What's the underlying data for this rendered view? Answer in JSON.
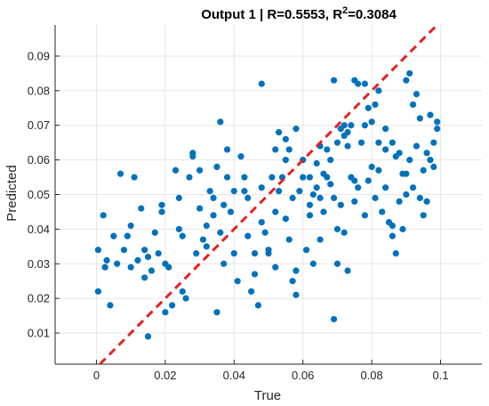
{
  "chart_data": {
    "type": "scatter",
    "title": {
      "prefix": "Output 1 | R=0.5553, R",
      "sup": "2",
      "suffix": "=0.3084"
    },
    "xlabel": "True",
    "ylabel": "Predicted",
    "xlim": [
      -0.012,
      0.112
    ],
    "ylim": [
      0.001,
      0.099
    ],
    "x_ticks": [
      0,
      0.02,
      0.04,
      0.06,
      0.08,
      0.1
    ],
    "x_tick_labels": [
      "0",
      "0.02",
      "0.04",
      "0.06",
      "0.08",
      "0.1"
    ],
    "y_ticks": [
      0.01,
      0.02,
      0.03,
      0.04,
      0.05,
      0.06,
      0.07,
      0.08,
      0.09
    ],
    "y_tick_labels": [
      "0.01",
      "0.02",
      "0.03",
      "0.04",
      "0.05",
      "0.06",
      "0.07",
      "0.08",
      "0.09"
    ],
    "grid": true,
    "marker_color": "#0072BD",
    "reference_line": {
      "style": "dashed",
      "color": "#E32222",
      "from": [
        0,
        0
      ],
      "to": [
        0.1,
        0.1
      ]
    },
    "points": [
      [
        0.0005,
        0.034
      ],
      [
        0.0005,
        0.022
      ],
      [
        0.002,
        0.044
      ],
      [
        0.0025,
        0.029
      ],
      [
        0.003,
        0.031
      ],
      [
        0.004,
        0.018
      ],
      [
        0.005,
        0.038
      ],
      [
        0.006,
        0.03
      ],
      [
        0.007,
        0.056
      ],
      [
        0.008,
        0.034
      ],
      [
        0.009,
        0.038
      ],
      [
        0.01,
        0.029
      ],
      [
        0.01,
        0.041
      ],
      [
        0.011,
        0.055
      ],
      [
        0.012,
        0.031
      ],
      [
        0.013,
        0.046
      ],
      [
        0.014,
        0.034
      ],
      [
        0.014,
        0.026
      ],
      [
        0.015,
        0.009
      ],
      [
        0.015,
        0.032
      ],
      [
        0.016,
        0.028
      ],
      [
        0.017,
        0.039
      ],
      [
        0.018,
        0.033
      ],
      [
        0.019,
        0.047
      ],
      [
        0.019,
        0.045
      ],
      [
        0.02,
        0.03
      ],
      [
        0.02,
        0.016
      ],
      [
        0.021,
        0.029
      ],
      [
        0.022,
        0.018
      ],
      [
        0.023,
        0.057
      ],
      [
        0.024,
        0.049
      ],
      [
        0.024,
        0.04
      ],
      [
        0.025,
        0.038
      ],
      [
        0.025,
        0.022
      ],
      [
        0.026,
        0.02
      ],
      [
        0.027,
        0.055
      ],
      [
        0.028,
        0.062
      ],
      [
        0.028,
        0.061
      ],
      [
        0.029,
        0.033
      ],
      [
        0.03,
        0.057
      ],
      [
        0.03,
        0.046
      ],
      [
        0.031,
        0.037
      ],
      [
        0.032,
        0.035
      ],
      [
        0.032,
        0.041
      ],
      [
        0.033,
        0.051
      ],
      [
        0.034,
        0.049
      ],
      [
        0.034,
        0.044
      ],
      [
        0.035,
        0.058
      ],
      [
        0.035,
        0.016
      ],
      [
        0.036,
        0.071
      ],
      [
        0.036,
        0.039
      ],
      [
        0.037,
        0.047
      ],
      [
        0.037,
        0.03
      ],
      [
        0.038,
        0.063
      ],
      [
        0.038,
        0.055
      ],
      [
        0.039,
        0.045
      ],
      [
        0.04,
        0.051
      ],
      [
        0.04,
        0.033
      ],
      [
        0.041,
        0.025
      ],
      [
        0.042,
        0.061
      ],
      [
        0.043,
        0.055
      ],
      [
        0.043,
        0.051
      ],
      [
        0.044,
        0.049
      ],
      [
        0.044,
        0.038
      ],
      [
        0.045,
        0.022
      ],
      [
        0.046,
        0.033
      ],
      [
        0.046,
        0.027
      ],
      [
        0.047,
        0.018
      ],
      [
        0.048,
        0.042
      ],
      [
        0.048,
        0.052
      ],
      [
        0.049,
        0.039
      ],
      [
        0.05,
        0.034
      ],
      [
        0.05,
        0.033
      ],
      [
        0.051,
        0.055
      ],
      [
        0.052,
        0.045
      ],
      [
        0.052,
        0.029
      ],
      [
        0.053,
        0.051
      ],
      [
        0.054,
        0.055
      ],
      [
        0.055,
        0.06
      ],
      [
        0.055,
        0.043
      ],
      [
        0.056,
        0.037
      ],
      [
        0.057,
        0.025
      ],
      [
        0.057,
        0.049
      ],
      [
        0.058,
        0.028
      ],
      [
        0.059,
        0.051
      ],
      [
        0.06,
        0.06
      ],
      [
        0.06,
        0.055
      ],
      [
        0.061,
        0.034
      ],
      [
        0.062,
        0.055
      ],
      [
        0.062,
        0.044
      ],
      [
        0.063,
        0.05
      ],
      [
        0.063,
        0.03
      ],
      [
        0.064,
        0.052
      ],
      [
        0.065,
        0.049
      ],
      [
        0.066,
        0.045
      ],
      [
        0.066,
        0.056
      ],
      [
        0.067,
        0.055
      ],
      [
        0.068,
        0.053
      ],
      [
        0.068,
        0.06
      ],
      [
        0.069,
        0.049
      ],
      [
        0.07,
        0.065
      ],
      [
        0.07,
        0.03
      ],
      [
        0.071,
        0.069
      ],
      [
        0.072,
        0.07
      ],
      [
        0.072,
        0.067
      ],
      [
        0.073,
        0.064
      ],
      [
        0.073,
        0.068
      ],
      [
        0.074,
        0.07
      ],
      [
        0.075,
        0.054
      ],
      [
        0.075,
        0.048
      ],
      [
        0.076,
        0.052
      ],
      [
        0.076,
        0.082
      ],
      [
        0.077,
        0.065
      ],
      [
        0.078,
        0.07
      ],
      [
        0.078,
        0.044
      ],
      [
        0.079,
        0.054
      ],
      [
        0.08,
        0.071
      ],
      [
        0.08,
        0.058
      ],
      [
        0.081,
        0.049
      ],
      [
        0.082,
        0.057
      ],
      [
        0.082,
        0.065
      ],
      [
        0.083,
        0.045
      ],
      [
        0.084,
        0.052
      ],
      [
        0.084,
        0.063
      ],
      [
        0.085,
        0.042
      ],
      [
        0.086,
        0.041
      ],
      [
        0.086,
        0.038
      ],
      [
        0.087,
        0.033
      ],
      [
        0.087,
        0.061
      ],
      [
        0.088,
        0.048
      ],
      [
        0.089,
        0.04
      ],
      [
        0.089,
        0.056
      ],
      [
        0.09,
        0.083
      ],
      [
        0.09,
        0.05
      ],
      [
        0.091,
        0.085
      ],
      [
        0.091,
        0.06
      ],
      [
        0.092,
        0.076
      ],
      [
        0.092,
        0.052
      ],
      [
        0.093,
        0.079
      ],
      [
        0.093,
        0.064
      ],
      [
        0.094,
        0.072
      ],
      [
        0.094,
        0.049
      ],
      [
        0.095,
        0.057
      ],
      [
        0.095,
        0.044
      ],
      [
        0.096,
        0.062
      ],
      [
        0.096,
        0.048
      ],
      [
        0.097,
        0.073
      ],
      [
        0.097,
        0.06
      ],
      [
        0.098,
        0.065
      ],
      [
        0.098,
        0.058
      ],
      [
        0.099,
        0.071
      ],
      [
        0.099,
        0.069
      ],
      [
        0.048,
        0.082
      ],
      [
        0.055,
        0.066
      ],
      [
        0.058,
        0.069
      ],
      [
        0.065,
        0.064
      ],
      [
        0.069,
        0.083
      ],
      [
        0.075,
        0.083
      ],
      [
        0.078,
        0.082
      ],
      [
        0.082,
        0.08
      ],
      [
        0.058,
        0.021
      ],
      [
        0.069,
        0.014
      ],
      [
        0.072,
        0.039
      ],
      [
        0.065,
        0.037
      ],
      [
        0.062,
        0.047
      ],
      [
        0.052,
        0.063
      ],
      [
        0.053,
        0.068
      ],
      [
        0.056,
        0.063
      ],
      [
        0.064,
        0.059
      ],
      [
        0.067,
        0.063
      ],
      [
        0.071,
        0.047
      ],
      [
        0.074,
        0.055
      ],
      [
        0.079,
        0.075
      ],
      [
        0.081,
        0.076
      ],
      [
        0.084,
        0.069
      ],
      [
        0.086,
        0.065
      ],
      [
        0.088,
        0.062
      ],
      [
        0.09,
        0.056
      ],
      [
        0.07,
        0.04
      ],
      [
        0.073,
        0.028
      ]
    ]
  }
}
